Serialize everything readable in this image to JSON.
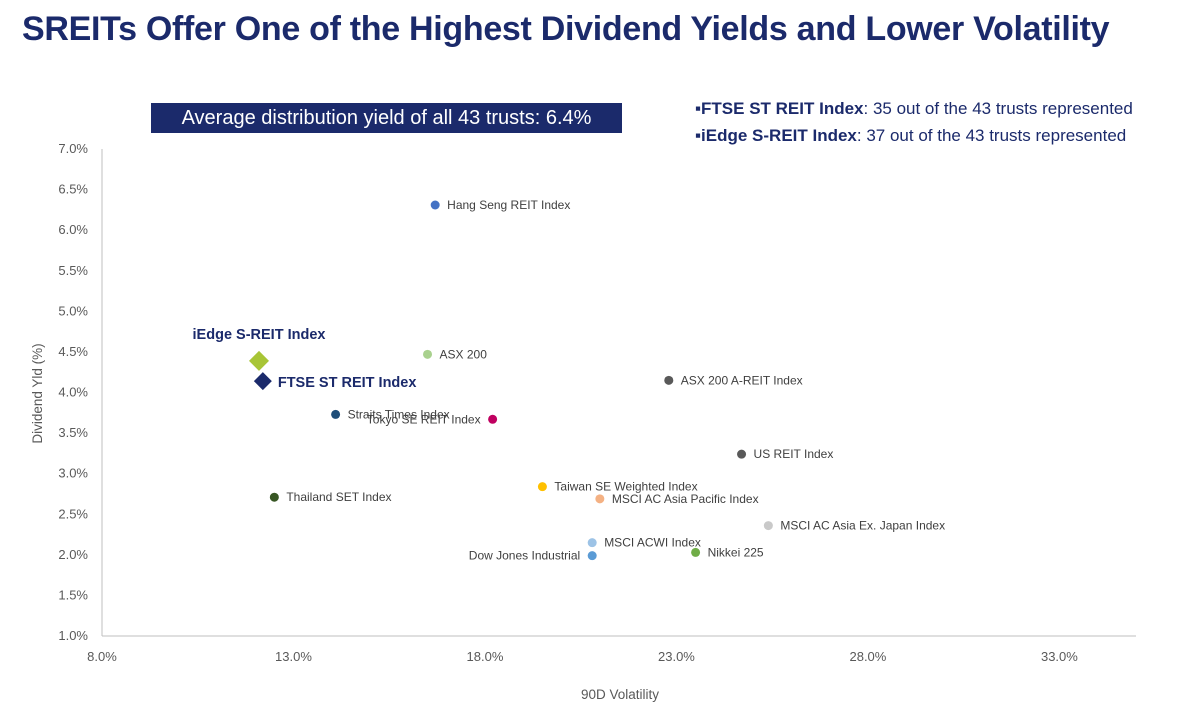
{
  "title": "SREITs Offer One of the Highest Dividend Yields and Lower Volatility",
  "banner": "Average distribution yield of all 43 trusts: 6.4%",
  "notes": [
    {
      "bullet": "▪",
      "name": "FTSE ST REIT Index",
      "text": ": 35 out of the 43 trusts represented"
    },
    {
      "bullet": "▪",
      "name": "iEdge S-REIT Index",
      "text": ": 37 out of the 43 trusts represented"
    }
  ],
  "chart_data": {
    "type": "scatter",
    "xlabel": "90D Volatility",
    "ylabel": "Dividend Yld (%)",
    "xlim": [
      8.0,
      35.0
    ],
    "ylim": [
      1.0,
      7.0
    ],
    "x_ticks": [
      "8.0%",
      "13.0%",
      "18.0%",
      "23.0%",
      "28.0%",
      "33.0%"
    ],
    "y_ticks": [
      "1.0%",
      "1.5%",
      "2.0%",
      "2.5%",
      "3.0%",
      "3.5%",
      "4.0%",
      "4.5%",
      "5.0%",
      "5.5%",
      "6.0%",
      "6.5%",
      "7.0%"
    ],
    "grid": false,
    "points": [
      {
        "name": "Hang Seng REIT Index",
        "x": 16.7,
        "y": 6.31,
        "color": "#4472c4",
        "label_side": "right"
      },
      {
        "name": "ASX 200",
        "x": 16.5,
        "y": 4.47,
        "color": "#a9d18e",
        "label_side": "right"
      },
      {
        "name": "ASX 200 A-REIT Index",
        "x": 22.8,
        "y": 4.15,
        "color": "#595959",
        "label_side": "right"
      },
      {
        "name": "Straits Times Index",
        "x": 14.1,
        "y": 3.73,
        "color": "#1f4e79",
        "label_side": "right"
      },
      {
        "name": "Tokyo SE REIT Index",
        "x": 18.2,
        "y": 3.67,
        "color": "#c00060",
        "label_side": "left"
      },
      {
        "name": "US REIT Index",
        "x": 24.7,
        "y": 3.24,
        "color": "#595959",
        "label_side": "right"
      },
      {
        "name": "Taiwan SE Weighted Index",
        "x": 19.5,
        "y": 2.84,
        "color": "#ffc000",
        "label_side": "right"
      },
      {
        "name": "Thailand SET Index",
        "x": 12.5,
        "y": 2.71,
        "color": "#375623",
        "label_side": "right"
      },
      {
        "name": "MSCI AC Asia Pacific Index",
        "x": 21.0,
        "y": 2.69,
        "color": "#f4b183",
        "label_side": "right"
      },
      {
        "name": "MSCI AC Asia Ex. Japan Index",
        "x": 25.4,
        "y": 2.36,
        "color": "#c9c9c9",
        "label_side": "right"
      },
      {
        "name": "MSCI ACWI Index",
        "x": 20.8,
        "y": 2.15,
        "color": "#9dc3e6",
        "label_side": "right"
      },
      {
        "name": "Nikkei 225",
        "x": 23.5,
        "y": 2.03,
        "color": "#70ad47",
        "label_side": "right"
      },
      {
        "name": "Dow Jones Industrial",
        "x": 20.8,
        "y": 1.99,
        "color": "#5b9bd5",
        "label_side": "left"
      }
    ],
    "highlights": [
      {
        "name": "iEdge S-REIT Index",
        "x": 12.1,
        "y": 4.39,
        "color": "#a8c536",
        "label_side": "above"
      },
      {
        "name": "FTSE ST REIT Index",
        "x": 12.2,
        "y": 4.14,
        "color": "#1b2a6b",
        "label_side": "right"
      }
    ]
  }
}
